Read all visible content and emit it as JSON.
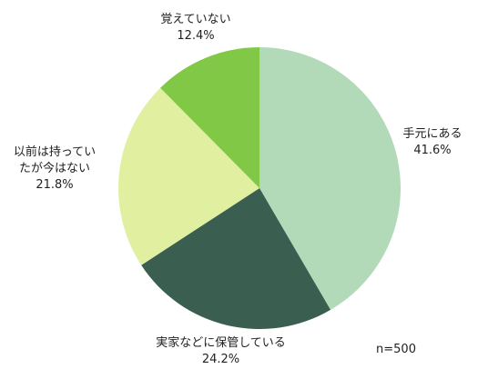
{
  "chart_data": {
    "type": "pie",
    "categories": [
      "手元にある",
      "実家などに保管している",
      "以前は持っていたが今はない",
      "覚えていない"
    ],
    "values": [
      41.6,
      24.2,
      21.8,
      12.4
    ],
    "value_labels": [
      "41.6%",
      "24.2%",
      "21.8%",
      "12.4%"
    ],
    "colors": [
      "#b2dab8",
      "#3a5e50",
      "#e0f0a0",
      "#80c845"
    ],
    "annotation": "n=500"
  }
}
